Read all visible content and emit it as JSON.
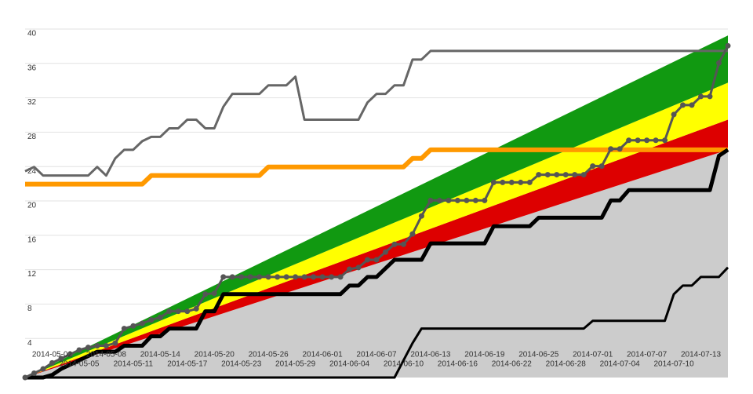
{
  "chart_data": {
    "type": "line",
    "x": [
      "2014-04-29",
      "2014-04-30",
      "2014-05-01",
      "2014-05-02",
      "2014-05-03",
      "2014-05-04",
      "2014-05-05",
      "2014-05-06",
      "2014-05-07",
      "2014-05-08",
      "2014-05-09",
      "2014-05-10",
      "2014-05-11",
      "2014-05-12",
      "2014-05-13",
      "2014-05-14",
      "2014-05-15",
      "2014-05-16",
      "2014-05-17",
      "2014-05-18",
      "2014-05-19",
      "2014-05-20",
      "2014-05-21",
      "2014-05-22",
      "2014-05-23",
      "2014-05-24",
      "2014-05-25",
      "2014-05-26",
      "2014-05-27",
      "2014-05-28",
      "2014-05-29",
      "2014-05-30",
      "2014-05-31",
      "2014-06-01",
      "2014-06-02",
      "2014-06-03",
      "2014-06-04",
      "2014-06-05",
      "2014-06-06",
      "2014-06-07",
      "2014-06-08",
      "2014-06-09",
      "2014-06-10",
      "2014-06-11",
      "2014-06-12",
      "2014-06-13",
      "2014-06-14",
      "2014-06-15",
      "2014-06-16",
      "2014-06-17",
      "2014-06-18",
      "2014-06-19",
      "2014-06-20",
      "2014-06-21",
      "2014-06-22",
      "2014-06-23",
      "2014-06-24",
      "2014-06-25",
      "2014-06-26",
      "2014-06-27",
      "2014-06-28",
      "2014-06-29",
      "2014-06-30",
      "2014-07-01",
      "2014-07-02",
      "2014-07-03",
      "2014-07-04",
      "2014-07-05",
      "2014-07-06",
      "2014-07-07",
      "2014-07-08",
      "2014-07-09",
      "2014-07-10",
      "2014-07-11",
      "2014-07-12",
      "2014-07-13",
      "2014-07-14",
      "2014-07-15",
      "2014-07-16"
    ],
    "bands": [
      {
        "color": "#cccccc",
        "x": [
          "2014-04-29",
          "2014-07-16"
        ],
        "values": [
          0,
          26.5
        ]
      },
      {
        "color": "#dd0000",
        "x": [
          "2014-04-29",
          "2014-07-16"
        ],
        "values": [
          0,
          30
        ]
      },
      {
        "color": "#ffff00",
        "x": [
          "2014-04-29",
          "2014-07-16"
        ],
        "values": [
          0,
          34.3
        ]
      },
      {
        "color": "#119911",
        "x": [
          "2014-04-29",
          "2014-07-16"
        ],
        "values": [
          0,
          39.8
        ]
      }
    ],
    "series": [
      {
        "color": "#ff9900",
        "width": 6,
        "markers": false,
        "values": [
          22.5,
          22.5,
          22.5,
          22.5,
          22.5,
          22.5,
          22.5,
          22.5,
          22.5,
          22.5,
          22.5,
          22.5,
          22.5,
          22.5,
          23.5,
          23.5,
          23.5,
          23.5,
          23.5,
          23.5,
          23.5,
          23.5,
          23.5,
          23.5,
          23.5,
          23.5,
          23.5,
          24.5,
          24.5,
          24.5,
          24.5,
          24.5,
          24.5,
          24.5,
          24.5,
          24.5,
          24.5,
          24.5,
          24.5,
          24.5,
          24.5,
          24.5,
          24.5,
          25.5,
          25.5,
          26.5,
          26.5,
          26.5,
          26.5,
          26.5,
          26.5,
          26.5,
          26.5,
          26.5,
          26.5,
          26.5,
          26.5,
          26.5,
          26.5,
          26.5,
          26.5,
          26.5,
          26.5,
          26.5,
          26.5,
          26.5,
          26.5,
          26.5,
          26.5,
          26.5,
          26.5,
          26.5,
          26.5,
          26.5,
          26.5,
          26.5,
          26.5,
          26.5,
          26.5
        ]
      },
      {
        "color": "#666666",
        "width": 3,
        "markers": false,
        "values": [
          24,
          24.5,
          23.5,
          23.5,
          23.5,
          23.5,
          23.5,
          23.5,
          24.5,
          23.5,
          25.5,
          26.5,
          26.5,
          27.5,
          28,
          28,
          29,
          29,
          30,
          30,
          29,
          29,
          31.5,
          33,
          33,
          33,
          33,
          34,
          34,
          34,
          35,
          30,
          30,
          30,
          30,
          30,
          30,
          30,
          32,
          33,
          33,
          34,
          34,
          37,
          37,
          38,
          38,
          38,
          38,
          38,
          38,
          38,
          38,
          38,
          38,
          38,
          38,
          38,
          38,
          38,
          38,
          38,
          38,
          38,
          38,
          38,
          38,
          38,
          38,
          38,
          38,
          38,
          38,
          38,
          38,
          38,
          38,
          38,
          38
        ]
      },
      {
        "color": "#000000",
        "width": 3,
        "markers": false,
        "values": [
          0,
          0,
          0,
          0,
          0,
          0,
          0,
          0,
          0,
          0,
          0,
          0,
          0,
          0,
          0,
          0,
          0,
          0,
          0,
          0,
          0,
          0,
          0,
          0,
          0,
          0,
          0,
          0,
          0,
          0,
          0,
          0,
          0,
          0,
          0,
          0,
          0,
          0,
          0,
          0,
          0,
          0,
          2,
          4,
          5.7,
          5.7,
          5.7,
          5.7,
          5.7,
          5.7,
          5.7,
          5.7,
          5.7,
          5.7,
          5.7,
          5.7,
          5.7,
          5.7,
          5.7,
          5.7,
          5.7,
          5.7,
          5.7,
          6.6,
          6.6,
          6.6,
          6.6,
          6.6,
          6.6,
          6.6,
          6.6,
          6.6,
          9.7,
          10.7,
          10.7,
          11.7,
          11.7,
          11.7,
          12.8
        ]
      },
      {
        "color": "#000000",
        "width": 5,
        "markers": false,
        "values": [
          0,
          0,
          0,
          0.3,
          1,
          1.5,
          2,
          2.5,
          3,
          3,
          3,
          3.7,
          3.7,
          3.7,
          4.8,
          4.8,
          5.7,
          5.7,
          5.7,
          5.7,
          7.7,
          7.7,
          9.7,
          9.7,
          9.7,
          9.7,
          9.7,
          9.7,
          9.7,
          9.7,
          9.7,
          9.7,
          9.7,
          9.7,
          9.7,
          9.7,
          10.7,
          10.7,
          11.7,
          11.7,
          12.7,
          13.7,
          13.7,
          13.7,
          13.7,
          15.6,
          15.6,
          15.6,
          15.6,
          15.6,
          15.6,
          15.6,
          17.6,
          17.6,
          17.6,
          17.6,
          17.6,
          18.6,
          18.6,
          18.6,
          18.6,
          18.6,
          18.6,
          18.6,
          18.6,
          20.6,
          20.6,
          21.8,
          21.8,
          21.8,
          21.8,
          21.8,
          21.8,
          21.8,
          21.8,
          21.8,
          21.8,
          25.8,
          26.5
        ]
      },
      {
        "color": "#555555",
        "width": 3,
        "markers": true,
        "values": [
          0,
          0.5,
          1,
          1.7,
          2.2,
          2.7,
          3.2,
          3.5,
          3.7,
          3.7,
          4,
          5.7,
          6,
          6.3,
          6.7,
          7,
          7.7,
          7.7,
          7.7,
          8,
          9.7,
          9.8,
          11.7,
          11.7,
          11.7,
          11.7,
          11.7,
          11.7,
          11.7,
          11.7,
          11.7,
          11.7,
          11.7,
          11.7,
          11.7,
          11.7,
          12.6,
          12.8,
          13.7,
          13.7,
          14.6,
          15.5,
          15.5,
          16.7,
          18.8,
          20.6,
          20.6,
          20.6,
          20.6,
          20.6,
          20.6,
          20.6,
          22.7,
          22.7,
          22.7,
          22.7,
          22.7,
          23.6,
          23.6,
          23.6,
          23.6,
          23.6,
          23.6,
          24.6,
          24.6,
          26.6,
          26.6,
          27.6,
          27.6,
          27.6,
          27.6,
          27.6,
          30.6,
          31.7,
          31.7,
          32.7,
          32.7,
          36.6,
          38.6
        ]
      }
    ],
    "ylim": [
      0,
      40
    ],
    "yticks": [
      4,
      8,
      12,
      16,
      20,
      24,
      28,
      32,
      36,
      40
    ],
    "grid": true,
    "xticks": [
      "2014-05-02",
      "2014-05-05",
      "2014-05-08",
      "2014-05-11",
      "2014-05-14",
      "2014-05-17",
      "2014-05-20",
      "2014-05-23",
      "2014-05-26",
      "2014-05-29",
      "2014-06-01",
      "2014-06-04",
      "2014-06-07",
      "2014-06-10",
      "2014-06-13",
      "2014-06-16",
      "2014-06-19",
      "2014-06-22",
      "2014-06-25",
      "2014-06-28",
      "2014-07-01",
      "2014-07-04",
      "2014-07-07",
      "2014-07-10",
      "2014-07-13"
    ]
  }
}
